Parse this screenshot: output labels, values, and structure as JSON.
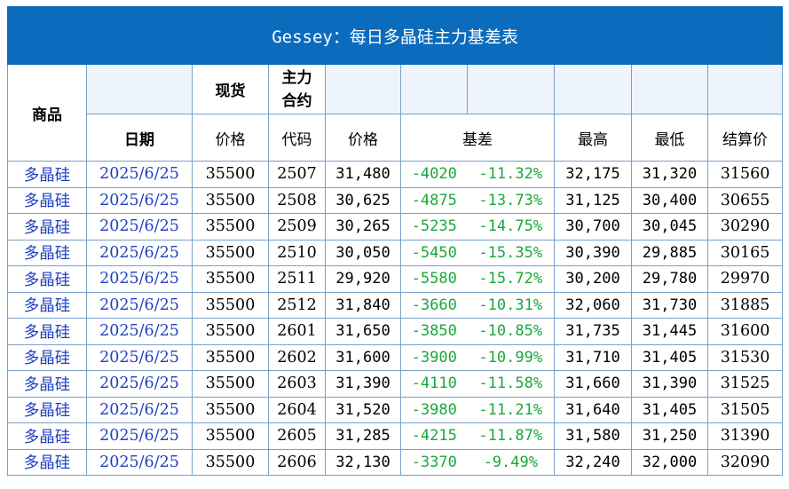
{
  "title": "Gessey：每日多晶硅主力基差表",
  "headers": {
    "product": "商品",
    "spot": "现货",
    "main_contract": "主力合约",
    "date": "日期",
    "spot_price": "价格",
    "code": "代码",
    "price": "价格",
    "basis": "基差",
    "high": "最高",
    "low": "最低",
    "settle": "结算价"
  },
  "rows": [
    {
      "product": "多晶硅",
      "date": "2025/6/25",
      "spot": "35500",
      "code": "2507",
      "price": "31,480",
      "basis": "-4020",
      "basis_pct": "-11.32%",
      "high": "32,175",
      "low": "31,320",
      "settle": "31560"
    },
    {
      "product": "多晶硅",
      "date": "2025/6/25",
      "spot": "35500",
      "code": "2508",
      "price": "30,625",
      "basis": "-4875",
      "basis_pct": "-13.73%",
      "high": "31,125",
      "low": "30,400",
      "settle": "30655"
    },
    {
      "product": "多晶硅",
      "date": "2025/6/25",
      "spot": "35500",
      "code": "2509",
      "price": "30,265",
      "basis": "-5235",
      "basis_pct": "-14.75%",
      "high": "30,700",
      "low": "30,045",
      "settle": "30290"
    },
    {
      "product": "多晶硅",
      "date": "2025/6/25",
      "spot": "35500",
      "code": "2510",
      "price": "30,050",
      "basis": "-5450",
      "basis_pct": "-15.35%",
      "high": "30,390",
      "low": "29,885",
      "settle": "30165"
    },
    {
      "product": "多晶硅",
      "date": "2025/6/25",
      "spot": "35500",
      "code": "2511",
      "price": "29,920",
      "basis": "-5580",
      "basis_pct": "-15.72%",
      "high": "30,200",
      "low": "29,780",
      "settle": "29970"
    },
    {
      "product": "多晶硅",
      "date": "2025/6/25",
      "spot": "35500",
      "code": "2512",
      "price": "31,840",
      "basis": "-3660",
      "basis_pct": "-10.31%",
      "high": "32,060",
      "low": "31,730",
      "settle": "31885"
    },
    {
      "product": "多晶硅",
      "date": "2025/6/25",
      "spot": "35500",
      "code": "2601",
      "price": "31,650",
      "basis": "-3850",
      "basis_pct": "-10.85%",
      "high": "31,735",
      "low": "31,445",
      "settle": "31600"
    },
    {
      "product": "多晶硅",
      "date": "2025/6/25",
      "spot": "35500",
      "code": "2602",
      "price": "31,600",
      "basis": "-3900",
      "basis_pct": "-10.99%",
      "high": "31,710",
      "low": "31,405",
      "settle": "31530"
    },
    {
      "product": "多晶硅",
      "date": "2025/6/25",
      "spot": "35500",
      "code": "2603",
      "price": "31,390",
      "basis": "-4110",
      "basis_pct": "-11.58%",
      "high": "31,660",
      "low": "31,390",
      "settle": "31525"
    },
    {
      "product": "多晶硅",
      "date": "2025/6/25",
      "spot": "35500",
      "code": "2604",
      "price": "31,520",
      "basis": "-3980",
      "basis_pct": "-11.21%",
      "high": "31,640",
      "low": "31,405",
      "settle": "31505"
    },
    {
      "product": "多晶硅",
      "date": "2025/6/25",
      "spot": "35500",
      "code": "2605",
      "price": "31,285",
      "basis": "-4215",
      "basis_pct": "-11.87%",
      "high": "31,580",
      "low": "31,250",
      "settle": "31390"
    },
    {
      "product": "多晶硅",
      "date": "2025/6/25",
      "spot": "35500",
      "code": "2606",
      "price": "32,130",
      "basis": "-3370",
      "basis_pct": "-9.49%",
      "high": "32,240",
      "low": "32,000",
      "settle": "32090"
    }
  ]
}
